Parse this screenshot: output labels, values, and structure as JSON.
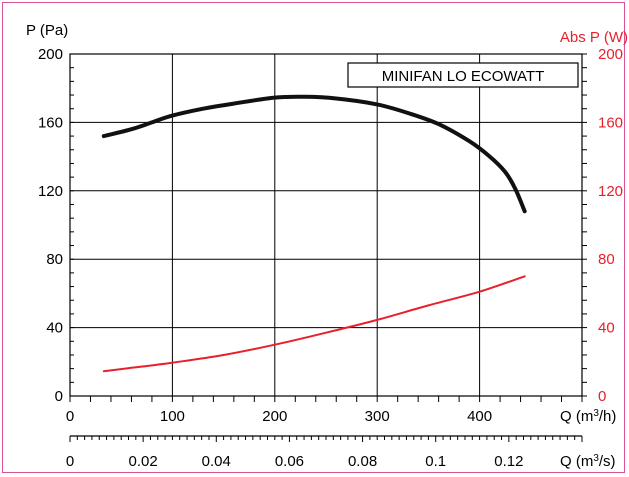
{
  "chart_data": {
    "type": "line",
    "title": "MINIFAN LO ECOWATT",
    "ylabel_left": "P (Pa)",
    "ylabel_right": "Abs P (W)",
    "xlabel_primary": "Q (m3/h)",
    "xlabel_secondary": "Q (m3/s)",
    "xlim": [
      0,
      500
    ],
    "ylim": [
      0,
      200
    ],
    "ylim_right": [
      0,
      200
    ],
    "x_secondary_lim": [
      0,
      0.14
    ],
    "x_ticks": [
      "0",
      "100",
      "200",
      "300",
      "400"
    ],
    "x_secondary_ticks": [
      "0",
      "0.02",
      "0.04",
      "0.06",
      "0.08",
      "0.1",
      "0.12"
    ],
    "y_ticks_left": [
      "0",
      "40",
      "80",
      "120",
      "160",
      "200"
    ],
    "y_ticks_right": [
      "0",
      "40",
      "80",
      "120",
      "160",
      "200"
    ],
    "grid": true,
    "series": [
      {
        "axis": "left",
        "color": "#111111",
        "x": [
          33,
          60,
          80,
          100,
          130,
          160,
          200,
          230,
          260,
          300,
          330,
          360,
          390,
          410,
          425,
          435,
          444
        ],
        "y": [
          152,
          156,
          160,
          164,
          168,
          171,
          174.5,
          175,
          174,
          170.5,
          165.5,
          159,
          149,
          140,
          131,
          121,
          108
        ]
      },
      {
        "axis": "right",
        "color": "#e8202a",
        "x": [
          33,
          60,
          100,
          150,
          200,
          250,
          300,
          350,
          400,
          444
        ],
        "y": [
          14.5,
          16.5,
          19.5,
          24,
          30,
          37,
          44.5,
          53,
          61,
          70
        ]
      }
    ]
  }
}
